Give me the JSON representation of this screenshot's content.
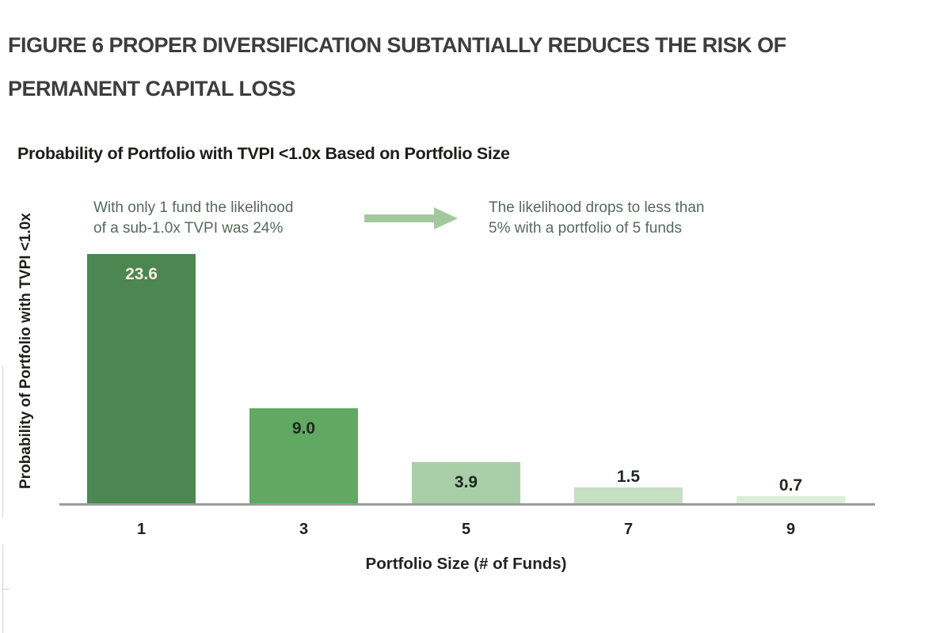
{
  "document": {
    "title_line1": "FIGURE 6 PROPER DIVERSIFICATION SUBTANTIALLY REDUCES THE RISK OF",
    "title_line2": "PERMANENT CAPITAL LOSS"
  },
  "chart_data": {
    "type": "bar",
    "title": "Probability of Portfolio with TVPI <1.0x Based on Portfolio Size",
    "categories": [
      "1",
      "3",
      "5",
      "7",
      "9"
    ],
    "values": [
      23.6,
      9.0,
      3.9,
      1.5,
      0.7
    ],
    "xlabel": "Portfolio Size (# of Funds)",
    "ylabel": "Probability of Portfolio with TVPI <1.0x",
    "ylim": [
      0,
      24
    ],
    "grid": false,
    "legend": "none",
    "bar_colors": [
      "#4c8650",
      "#61a963",
      "#a8cfa8",
      "#c5dfc2",
      "#dceeda"
    ],
    "value_label_colors": [
      "#f2efe2",
      "#20291f",
      "#20291f",
      "#20291f",
      "#20291f"
    ],
    "annotations": [
      {
        "line1": "With only 1 fund the likelihood",
        "line2": "of a sub-1.0x TVPI was 24%"
      },
      {
        "line1": "The likelihood drops to less than",
        "line2": "5% with a portfolio of 5 funds"
      }
    ],
    "arrow_color": "#a4c89e"
  },
  "palette": {
    "doc_title_text": "#3d3d3d",
    "chart_title_text": "#1d1d1b",
    "annotation_text": "#57695c",
    "axis_line": "#9b9b9b",
    "tick_text": "#212121"
  }
}
